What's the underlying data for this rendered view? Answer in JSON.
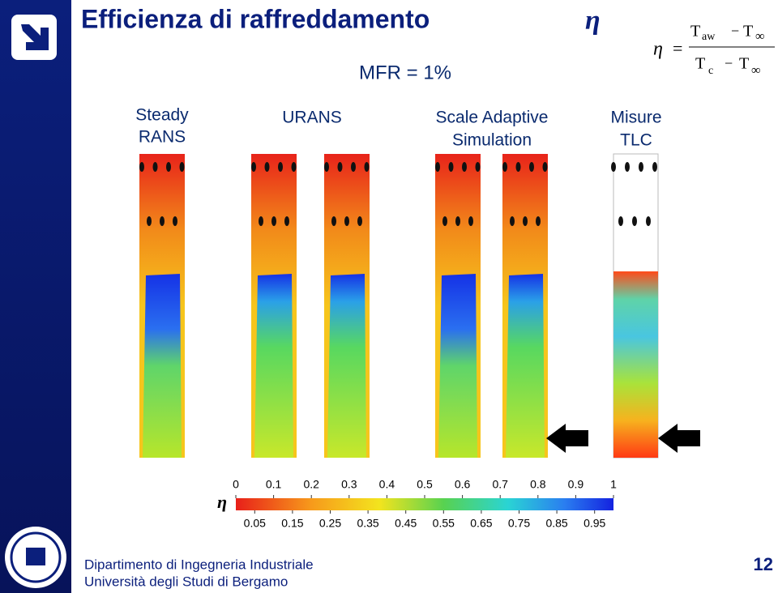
{
  "header": {
    "title": "Efficienza di raffreddamento",
    "title_symbol": "η",
    "subtitle": "MFR = 1%"
  },
  "formula": {
    "lhs": "η",
    "eq": "=",
    "numerator": {
      "t1": "T",
      "sub1": "aw",
      "op": "−",
      "t2": "T",
      "sub2": "∞"
    },
    "denominator": {
      "t1": "T",
      "sub1": "c",
      "op": "−",
      "t2": "T",
      "sub2": "∞"
    }
  },
  "columns": [
    {
      "lines": [
        "Steady",
        "RANS"
      ]
    },
    {
      "lines": [
        "URANS"
      ]
    },
    {
      "lines": [
        "Scale Adaptive",
        "Simulation"
      ]
    },
    {
      "lines": [
        "Misure",
        "TLC"
      ]
    }
  ],
  "colorbar": {
    "symbol": "η",
    "top_ticks": [
      0,
      0.1,
      0.2,
      0.3,
      0.4,
      0.5,
      0.6,
      0.7,
      0.8,
      0.9,
      1
    ],
    "bottom_ticks": [
      0.05,
      0.15,
      0.25,
      0.35,
      0.45,
      0.55,
      0.65,
      0.75,
      0.85,
      0.95
    ]
  },
  "footer": {
    "department": "Dipartimento di Ingegneria Industriale",
    "university": "Università degli Studi di Bergamo",
    "page": 12
  }
}
